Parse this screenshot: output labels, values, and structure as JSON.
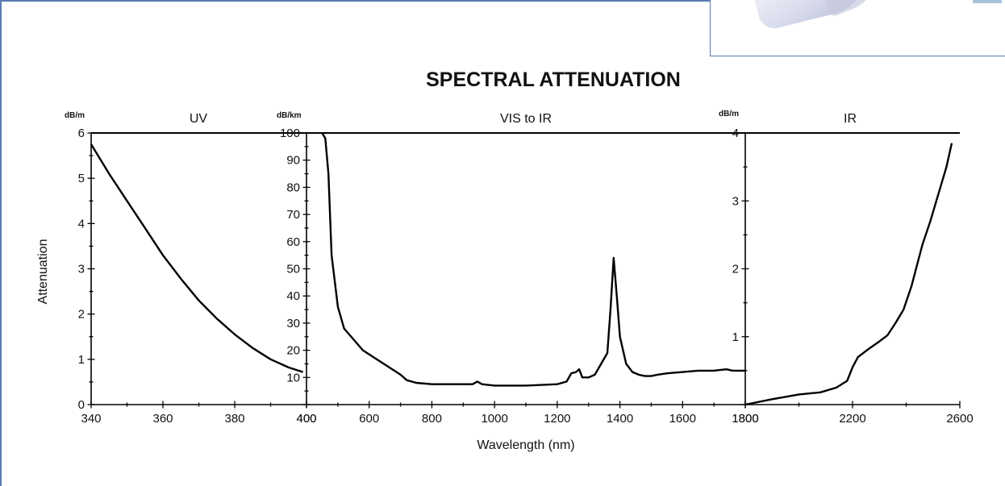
{
  "page": {
    "frame_color": "#5a7bb0"
  },
  "chart_data": {
    "type": "line",
    "title": "SPECTRAL ATTENUATION",
    "xlabel": "Wavelength (nm)",
    "ylabel": "Attenuation",
    "line_color": "#000000",
    "grid": false,
    "panels": [
      {
        "name": "UV",
        "unit": "dB/m",
        "xlim": [
          340,
          400
        ],
        "ylim": [
          0,
          6
        ],
        "xticks": [
          340,
          360,
          380,
          400
        ],
        "yticks": [
          0,
          1,
          2,
          3,
          4,
          5,
          6
        ],
        "xticklabels": [
          "340",
          "360",
          "380",
          "400"
        ],
        "yticklabels": [
          "0",
          "1",
          "2",
          "3",
          "4",
          "5",
          "6"
        ],
        "series": [
          {
            "x": [
              340,
              345,
              350,
              355,
              360,
              365,
              370,
              375,
              380,
              385,
              390,
              395,
              399
            ],
            "y": [
              5.75,
              5.1,
              4.5,
              3.9,
              3.3,
              2.78,
              2.3,
              1.9,
              1.55,
              1.25,
              1.0,
              0.82,
              0.72
            ]
          }
        ]
      },
      {
        "name": "VIS to IR",
        "unit": "dB/km",
        "xlim": [
          400,
          1800
        ],
        "ylim": [
          0,
          100
        ],
        "xticks": [
          400,
          600,
          800,
          1000,
          1200,
          1400,
          1600,
          1800
        ],
        "yticks": [
          10,
          20,
          30,
          40,
          50,
          60,
          70,
          80,
          90,
          100
        ],
        "xticklabels": [
          "400",
          "600",
          "800",
          "1000",
          "1200",
          "1400",
          "1600",
          "1800"
        ],
        "yticklabels": [
          "10",
          "20",
          "30",
          "40",
          "50",
          "60",
          "70",
          "80",
          "90",
          "100"
        ],
        "series": [
          {
            "x": [
              450,
              460,
              470,
              480,
              500,
              520,
              550,
              580,
              620,
              660,
              700,
              720,
              750,
              800,
              850,
              900,
              930,
              945,
              960,
              1000,
              1100,
              1200,
              1230,
              1245,
              1260,
              1270,
              1280,
              1300,
              1320,
              1340,
              1360,
              1370,
              1380,
              1390,
              1400,
              1420,
              1440,
              1460,
              1480,
              1500,
              1520,
              1550,
              1600,
              1650,
              1700,
              1740,
              1760,
              1800
            ],
            "y": [
              100,
              98,
              85,
              55,
              36,
              28,
              24,
              20,
              17,
              14,
              11,
              9,
              8,
              7.5,
              7.5,
              7.5,
              7.5,
              8.5,
              7.5,
              7,
              7,
              7.5,
              8.5,
              11.5,
              12,
              13,
              10,
              10,
              11,
              15,
              19,
              35,
              54,
              40,
              25,
              15,
              12,
              11,
              10.5,
              10.5,
              11,
              11.5,
              12,
              12.5,
              12.5,
              13,
              12.5,
              12.5
            ]
          }
        ]
      },
      {
        "name": "IR",
        "unit": "dB/m",
        "xlim": [
          1800,
          2600
        ],
        "ylim": [
          0,
          4
        ],
        "xticks": [
          1800,
          2200,
          2600
        ],
        "yticks": [
          1,
          2,
          3,
          4
        ],
        "xticklabels": [
          "1800",
          "2200",
          "2600"
        ],
        "yticklabels": [
          "1",
          "2",
          "3",
          "4"
        ],
        "series": [
          {
            "x": [
              1800,
              1900,
              2000,
              2080,
              2140,
              2180,
              2200,
              2220,
              2260,
              2300,
              2330,
              2360,
              2390,
              2420,
              2440,
              2460,
              2490,
              2520,
              2550,
              2570
            ],
            "y": [
              0,
              0.08,
              0.15,
              0.18,
              0.25,
              0.35,
              0.55,
              0.7,
              0.82,
              0.93,
              1.02,
              1.2,
              1.4,
              1.75,
              2.05,
              2.35,
              2.7,
              3.1,
              3.5,
              3.85
            ]
          }
        ]
      }
    ]
  }
}
